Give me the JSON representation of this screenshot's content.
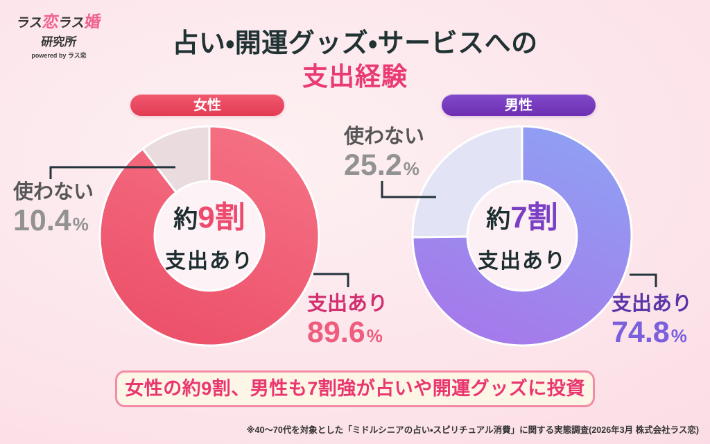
{
  "logo": {
    "part1": "ラス",
    "part2": "恋",
    "part3": "ラス",
    "part4": "婚",
    "line2": "研究所",
    "line3": "powered by ラス恋"
  },
  "title": {
    "line1": "占い・開運グッズ・サービスへの",
    "line2": "支出経験"
  },
  "palette": {
    "title_accent": "#ea3a74",
    "women_pill": "#e8465c",
    "men_pill": "#7435b8",
    "women_slice_top": "#f57184",
    "women_slice_bottom": "#ec5069",
    "women_slice_light": "#eadbdf",
    "men_slice_top": "#8fa0f3",
    "men_slice_bottom": "#a678ea",
    "men_slice_light": "#e2e4f6",
    "connector": "#24333c",
    "banner_bg": "#fdf6e7",
    "banner_border": "#f28ca6",
    "banner_text": "#e9366f"
  },
  "chart_data": [
    {
      "type": "pie",
      "donut": true,
      "group": "女性",
      "categories": [
        "支出あり",
        "使わない"
      ],
      "values": [
        89.6,
        10.4
      ],
      "unit": "%",
      "start_angle_deg": 0,
      "clockwise": true,
      "hole_color": "#fdf2f5",
      "slice_fills": [
        {
          "type": "gradient",
          "stops": [
            "#f57184",
            "#ec5069"
          ]
        },
        {
          "type": "solid",
          "color": "#eadbdf"
        }
      ],
      "center": {
        "approx": "約",
        "big": "9割",
        "sub": "支出あり"
      }
    },
    {
      "type": "pie",
      "donut": true,
      "group": "男性",
      "categories": [
        "支出あり",
        "使わない"
      ],
      "values": [
        74.8,
        25.2
      ],
      "unit": "%",
      "start_angle_deg": 0,
      "clockwise": true,
      "hole_color": "#fdf0f4",
      "slice_fills": [
        {
          "type": "gradient",
          "stops": [
            "#8fa0f3",
            "#a678ea"
          ]
        },
        {
          "type": "solid",
          "color": "#e2e4f6"
        }
      ],
      "center": {
        "approx": "約",
        "big": "7割",
        "sub": "支出あり"
      }
    }
  ],
  "banner": {
    "text": "女性の約9割、男性も7割強が占いや開運グッズに投資"
  },
  "footnote": "※40〜70代を対象とした「ミドルシニアの占い・スピリチュアル消費」に関する実態調査(2026年3月 株式会社ラス恋)"
}
